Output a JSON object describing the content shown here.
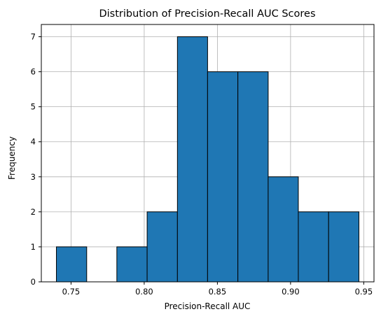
{
  "chart_data": {
    "type": "bar",
    "title": "Distribution of Precision-Recall AUC Scores",
    "xlabel": "Precision-Recall AUC",
    "ylabel": "Frequency",
    "bins": [
      {
        "start": 0.74,
        "end": 0.7607,
        "count": 1
      },
      {
        "start": 0.7607,
        "end": 0.7813,
        "count": 0
      },
      {
        "start": 0.7813,
        "end": 0.802,
        "count": 1
      },
      {
        "start": 0.802,
        "end": 0.8227,
        "count": 2
      },
      {
        "start": 0.8227,
        "end": 0.8433,
        "count": 7
      },
      {
        "start": 0.8433,
        "end": 0.864,
        "count": 6
      },
      {
        "start": 0.864,
        "end": 0.8847,
        "count": 6
      },
      {
        "start": 0.8847,
        "end": 0.9053,
        "count": 3
      },
      {
        "start": 0.9053,
        "end": 0.926,
        "count": 2
      },
      {
        "start": 0.926,
        "end": 0.9467,
        "count": 2
      }
    ],
    "xlim": [
      0.7297,
      0.957
    ],
    "ylim": [
      0,
      7.35
    ],
    "xticks": [
      {
        "value": 0.75,
        "label": "0.75"
      },
      {
        "value": 0.8,
        "label": "0.80"
      },
      {
        "value": 0.85,
        "label": "0.85"
      },
      {
        "value": 0.9,
        "label": "0.90"
      },
      {
        "value": 0.95,
        "label": "0.95"
      }
    ],
    "yticks": [
      {
        "value": 0,
        "label": "0"
      },
      {
        "value": 1,
        "label": "1"
      },
      {
        "value": 2,
        "label": "2"
      },
      {
        "value": 3,
        "label": "3"
      },
      {
        "value": 4,
        "label": "4"
      },
      {
        "value": 5,
        "label": "5"
      },
      {
        "value": 6,
        "label": "6"
      },
      {
        "value": 7,
        "label": "7"
      }
    ],
    "grid": true,
    "bar_color": "#1f77b4",
    "edge_color": "#000000",
    "grid_color": "#b0b0b0"
  }
}
